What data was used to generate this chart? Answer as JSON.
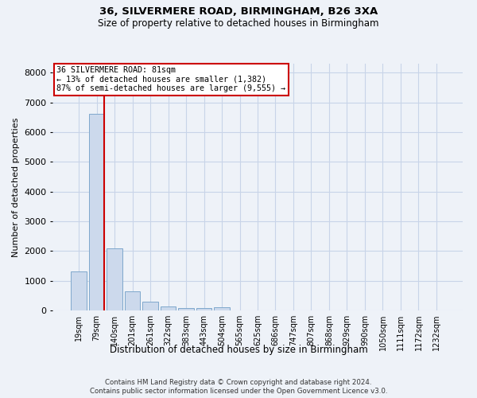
{
  "title1": "36, SILVERMERE ROAD, BIRMINGHAM, B26 3XA",
  "title2": "Size of property relative to detached houses in Birmingham",
  "xlabel": "Distribution of detached houses by size in Birmingham",
  "ylabel": "Number of detached properties",
  "categories": [
    "19sqm",
    "79sqm",
    "140sqm",
    "201sqm",
    "261sqm",
    "322sqm",
    "383sqm",
    "443sqm",
    "504sqm",
    "565sqm",
    "625sqm",
    "686sqm",
    "747sqm",
    "807sqm",
    "868sqm",
    "929sqm",
    "990sqm",
    "1050sqm",
    "1111sqm",
    "1172sqm",
    "1232sqm"
  ],
  "values": [
    1300,
    6600,
    2080,
    650,
    290,
    135,
    90,
    80,
    110,
    0,
    0,
    0,
    0,
    0,
    0,
    0,
    0,
    0,
    0,
    0,
    0
  ],
  "bar_color": "#ccd9ec",
  "bar_edge_color": "#7fa8cc",
  "vline_color": "#cc0000",
  "vline_x": 1.42,
  "annotation_text": "36 SILVERMERE ROAD: 81sqm\n← 13% of detached houses are smaller (1,382)\n87% of semi-detached houses are larger (9,555) →",
  "annotation_box_color": "#cc0000",
  "ylim": [
    0,
    8300
  ],
  "yticks": [
    0,
    1000,
    2000,
    3000,
    4000,
    5000,
    6000,
    7000,
    8000
  ],
  "grid_color": "#c8d4e8",
  "footer1": "Contains HM Land Registry data © Crown copyright and database right 2024.",
  "footer2": "Contains public sector information licensed under the Open Government Licence v3.0.",
  "bg_color": "#eef2f8",
  "plot_bg_color": "#eef2f8"
}
